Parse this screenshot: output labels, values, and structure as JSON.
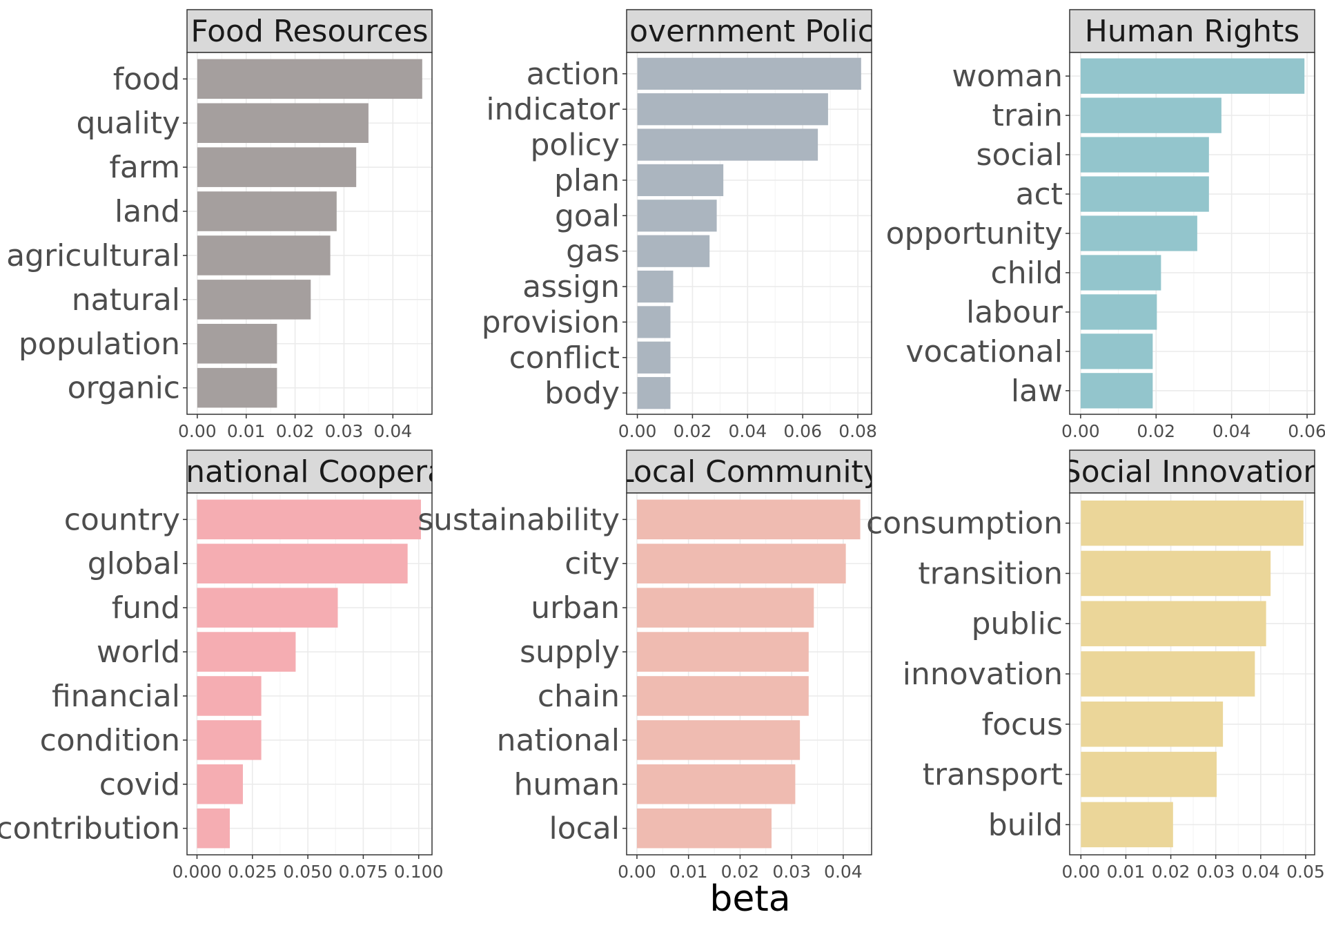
{
  "chart_data": {
    "type": "bar",
    "orientation": "horizontal",
    "xlabel": "beta",
    "grid": true,
    "legend": "none",
    "layout": "2 rows x 3 columns",
    "panels": [
      {
        "title": "Food Resources",
        "color": "#a59f9e",
        "categories": [
          "food",
          "quality",
          "farm",
          "land",
          "agricultural",
          "natural",
          "population",
          "organic"
        ],
        "values": [
          0.046,
          0.035,
          0.0325,
          0.0285,
          0.0272,
          0.0232,
          0.0163,
          0.0163
        ],
        "xlim": [
          -0.0021,
          0.048
        ],
        "xticks": [
          "0.00",
          "0.01",
          "0.02",
          "0.03",
          "0.04"
        ],
        "xtick_values": [
          0,
          0.01,
          0.02,
          0.03,
          0.04
        ]
      },
      {
        "title": "Government Policy",
        "color": "#abb5bf",
        "categories": [
          "action",
          "indicator",
          "policy",
          "plan",
          "goal",
          "gas",
          "assign",
          "provision",
          "conflict",
          "body"
        ],
        "values": [
          0.0812,
          0.0692,
          0.0655,
          0.0312,
          0.0288,
          0.0262,
          0.013,
          0.012,
          0.012,
          0.012
        ],
        "xlim": [
          -0.0039,
          0.085
        ],
        "xticks": [
          "0.00",
          "0.02",
          "0.04",
          "0.06",
          "0.08"
        ],
        "xtick_values": [
          0,
          0.02,
          0.04,
          0.06,
          0.08
        ]
      },
      {
        "title": "Human Rights",
        "color": "#93c5cc",
        "categories": [
          "woman",
          "train",
          "social",
          "act",
          "opportunity",
          "child",
          "labour",
          "vocational",
          "law"
        ],
        "values": [
          0.0593,
          0.0373,
          0.034,
          0.034,
          0.0309,
          0.0213,
          0.0202,
          0.0191,
          0.0191
        ],
        "xlim": [
          -0.0029,
          0.062
        ],
        "xticks": [
          "0.00",
          "0.02",
          "0.04",
          "0.06"
        ],
        "xtick_values": [
          0,
          0.02,
          0.04,
          0.06
        ]
      },
      {
        "title": "International Cooperation",
        "color": "#f5adb2",
        "categories": [
          "country",
          "global",
          "fund",
          "world",
          "financial",
          "condition",
          "covid",
          "contribution"
        ],
        "values": [
          0.101,
          0.095,
          0.0635,
          0.0445,
          0.029,
          0.029,
          0.0207,
          0.0148
        ],
        "xlim": [
          -0.0045,
          0.106
        ],
        "xticks": [
          "0.000",
          "0.025",
          "0.050",
          "0.075",
          "0.100"
        ],
        "xtick_values": [
          0,
          0.025,
          0.05,
          0.075,
          0.1
        ]
      },
      {
        "title": "Local Community",
        "color": "#efbbb1",
        "categories": [
          "sustainability",
          "city",
          "urban",
          "supply",
          "chain",
          "national",
          "human",
          "local"
        ],
        "values": [
          0.0433,
          0.0405,
          0.0343,
          0.0333,
          0.0333,
          0.0316,
          0.0307,
          0.0261
        ],
        "xlim": [
          -0.002,
          0.0455
        ],
        "xticks": [
          "0.00",
          "0.01",
          "0.02",
          "0.03",
          "0.04"
        ],
        "xtick_values": [
          0,
          0.01,
          0.02,
          0.03,
          0.04
        ]
      },
      {
        "title": "Social Innovation",
        "color": "#ebd699",
        "categories": [
          "consumption",
          "transition",
          "public",
          "innovation",
          "focus",
          "transport",
          "build"
        ],
        "values": [
          0.0495,
          0.0422,
          0.0412,
          0.0387,
          0.0316,
          0.0302,
          0.0205
        ],
        "xlim": [
          -0.0025,
          0.052
        ],
        "xticks": [
          "0.00",
          "0.01",
          "0.02",
          "0.03",
          "0.04",
          "0.05"
        ],
        "xtick_values": [
          0,
          0.01,
          0.02,
          0.03,
          0.04,
          0.05
        ]
      }
    ]
  }
}
